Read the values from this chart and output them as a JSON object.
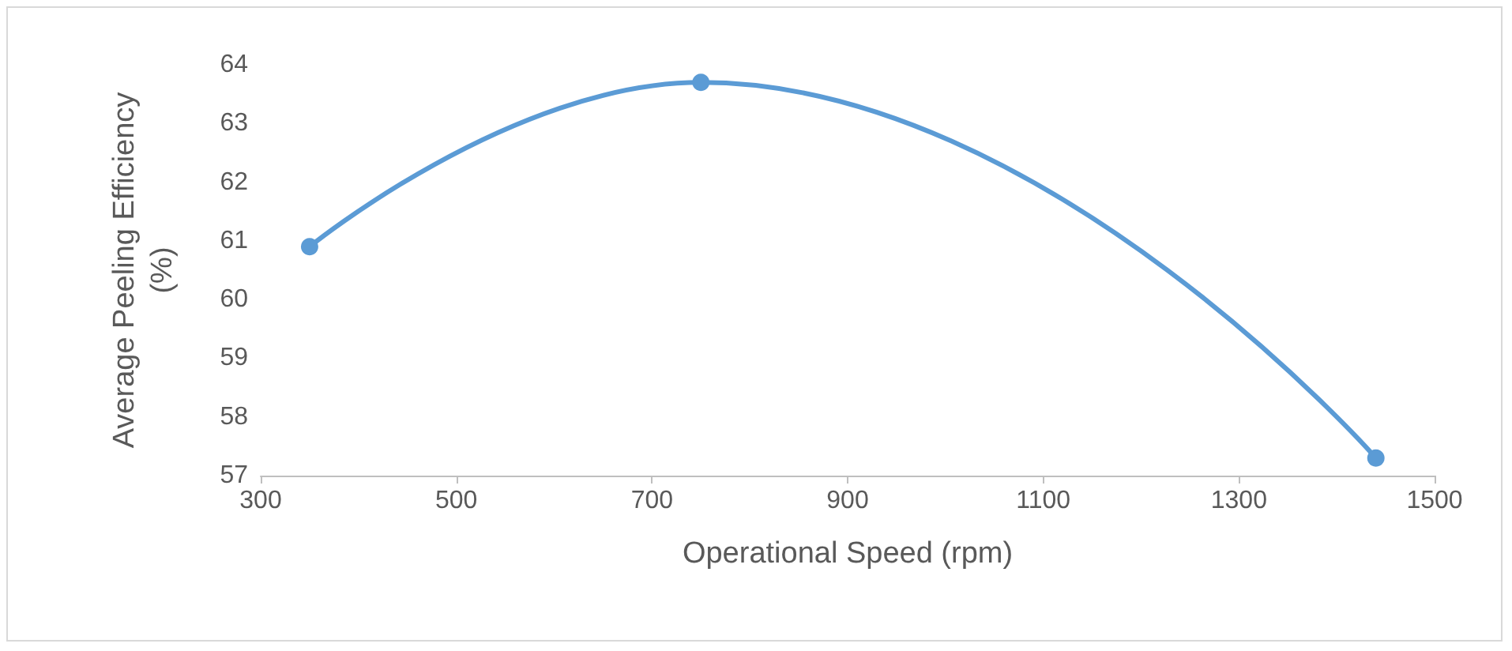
{
  "chart_data": {
    "type": "line",
    "xlabel": "Operational Speed (rpm)",
    "ylabel": "Average Peeling Efficiency\n(%)",
    "x": [
      350,
      750,
      1440
    ],
    "series": [
      {
        "color": "#5b9bd5",
        "values": [
          60.9,
          63.7,
          57.3
        ]
      }
    ],
    "xlim": [
      300,
      1500
    ],
    "xticks": [
      300,
      500,
      700,
      900,
      1100,
      1300,
      1500
    ],
    "ylim": [
      57,
      64
    ],
    "yticks": [
      57,
      58,
      59,
      60,
      61,
      62,
      63,
      64
    ],
    "grid": false,
    "marker": "circle",
    "line_style": "solid"
  }
}
